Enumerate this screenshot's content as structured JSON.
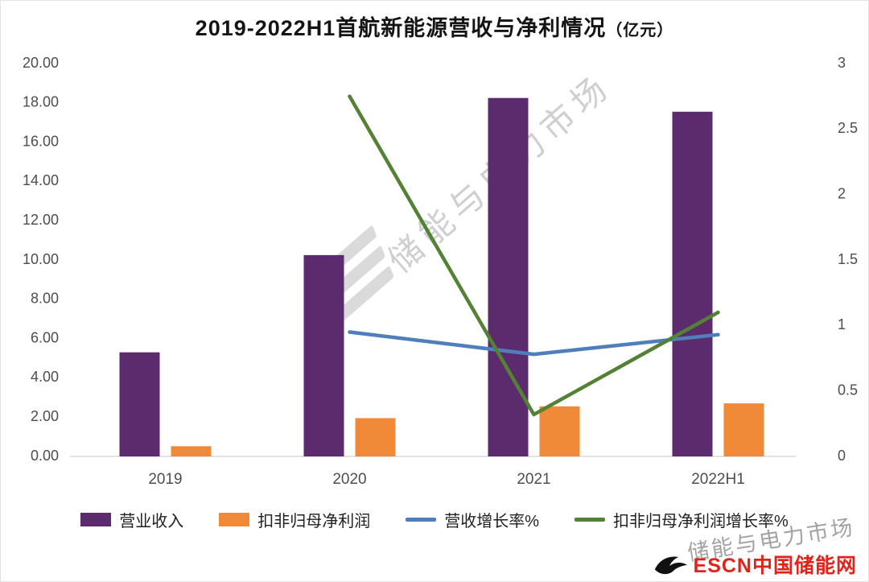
{
  "title": {
    "main": "2019-2022H1首航新能源营收与净利情况",
    "unit": "（亿元）"
  },
  "watermark": {
    "diagonal": "储能与电力市场",
    "corner": "储能与电力市场"
  },
  "footer": {
    "logo_text": "ESCN中国储能网",
    "color": "#e2231a"
  },
  "chart_data": {
    "type": "bar+line",
    "title": "2019-2022H1首航新能源营收与净利情况（亿元）",
    "categories": [
      "2019",
      "2020",
      "2021",
      "2022H1"
    ],
    "left_axis": {
      "min": 0,
      "max": 20,
      "step": 2,
      "ticks": [
        "0.00",
        "2.00",
        "4.00",
        "6.00",
        "8.00",
        "10.00",
        "12.00",
        "14.00",
        "16.00",
        "18.00",
        "20.00"
      ]
    },
    "right_axis": {
      "min": 0,
      "max": 3,
      "step": 0.5,
      "ticks": [
        "0",
        "0.5",
        "1",
        "1.5",
        "2",
        "2.5",
        "3"
      ]
    },
    "grid": false,
    "legend_position": "bottom",
    "series": [
      {
        "key": "revenue",
        "name": "营业收入",
        "type": "bar",
        "axis": "left",
        "color": "#5b2b6d",
        "values": [
          5.3,
          10.25,
          18.25,
          17.55
        ]
      },
      {
        "key": "net-profit",
        "name": "扣非归母净利润",
        "type": "bar",
        "axis": "left",
        "color": "#f08a38",
        "values": [
          0.52,
          1.95,
          2.55,
          2.7
        ]
      },
      {
        "key": "revenue-growth",
        "name": "营收增长率%",
        "type": "line",
        "axis": "right",
        "color": "#4e7ebb",
        "values": [
          null,
          0.95,
          0.78,
          0.93
        ]
      },
      {
        "key": "net-profit-growth",
        "name": "扣非归母净利润增长率%",
        "type": "line",
        "axis": "right",
        "color": "#548235",
        "values": [
          null,
          2.75,
          0.32,
          1.1
        ]
      }
    ]
  }
}
